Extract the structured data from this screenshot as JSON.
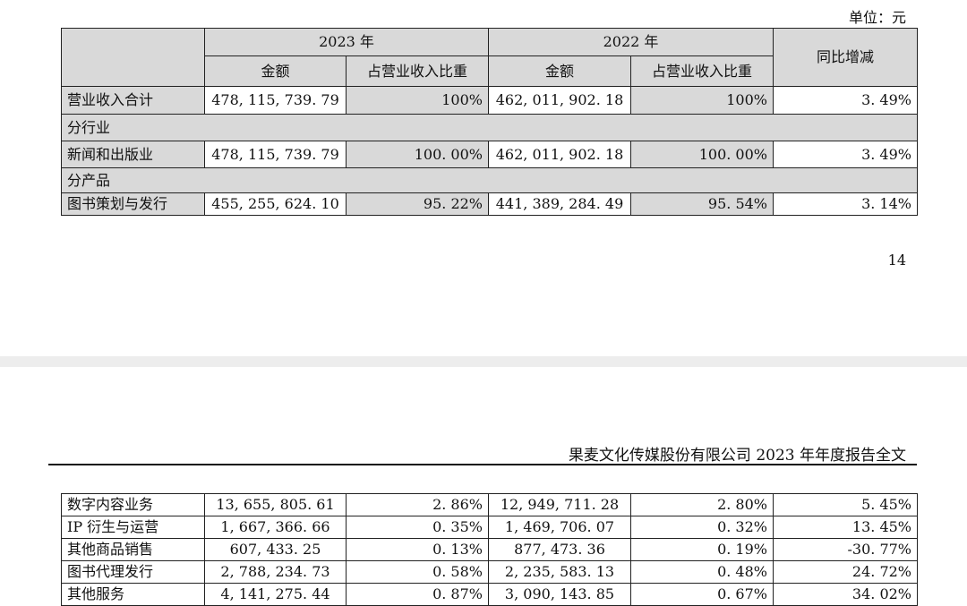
{
  "unit_label": "单位：元",
  "page_number": "14",
  "report_header": "果麦文化传媒股份有限公司 2023 年年度报告全文",
  "columns": {
    "year_2023": "2023 年",
    "year_2022": "2022 年",
    "yoy": "同比增减",
    "amount": "金额",
    "ratio": "占营业收入比重"
  },
  "table_top": {
    "total": {
      "label": "营业收入合计",
      "a23": "478, 115, 739. 79",
      "r23": "100%",
      "a22": "462, 011, 902. 18",
      "r22": "100%",
      "yoy": "3. 49%"
    },
    "section_industry": "分行业",
    "industry": {
      "label": "新闻和出版业",
      "a23": "478, 115, 739. 79",
      "r23": "100. 00%",
      "a22": "462, 011, 902. 18",
      "r22": "100. 00%",
      "yoy": "3. 49%"
    },
    "section_product": "分产品",
    "product": {
      "label": "图书策划与发行",
      "a23": "455, 255, 624. 10",
      "r23": "95. 22%",
      "a22": "441, 389, 284. 49",
      "r22": "95. 54%",
      "yoy": "3. 14%"
    }
  },
  "table_bottom": [
    {
      "label": "数字内容业务",
      "a23": "13, 655, 805. 61",
      "r23": "2. 86%",
      "a22": "12, 949, 711. 28",
      "r22": "2. 80%",
      "yoy": "5. 45%"
    },
    {
      "label": "IP 衍生与运营",
      "a23": "1, 667, 366. 66",
      "r23": "0. 35%",
      "a22": "1, 469, 706. 07",
      "r22": "0. 32%",
      "yoy": "13. 45%"
    },
    {
      "label": "其他商品销售",
      "a23": "607, 433. 25",
      "r23": "0. 13%",
      "a22": "877, 473. 36",
      "r22": "0. 19%",
      "yoy": "-30. 77%"
    },
    {
      "label": "图书代理发行",
      "a23": "2, 788, 234. 73",
      "r23": "0. 58%",
      "a22": "2, 235, 583. 13",
      "r22": "0. 48%",
      "yoy": "24. 72%"
    },
    {
      "label": "其他服务",
      "a23": "4, 141, 275. 44",
      "r23": "0. 87%",
      "a22": "3, 090, 143. 85",
      "r22": "0. 67%",
      "yoy": "34. 02%"
    }
  ]
}
